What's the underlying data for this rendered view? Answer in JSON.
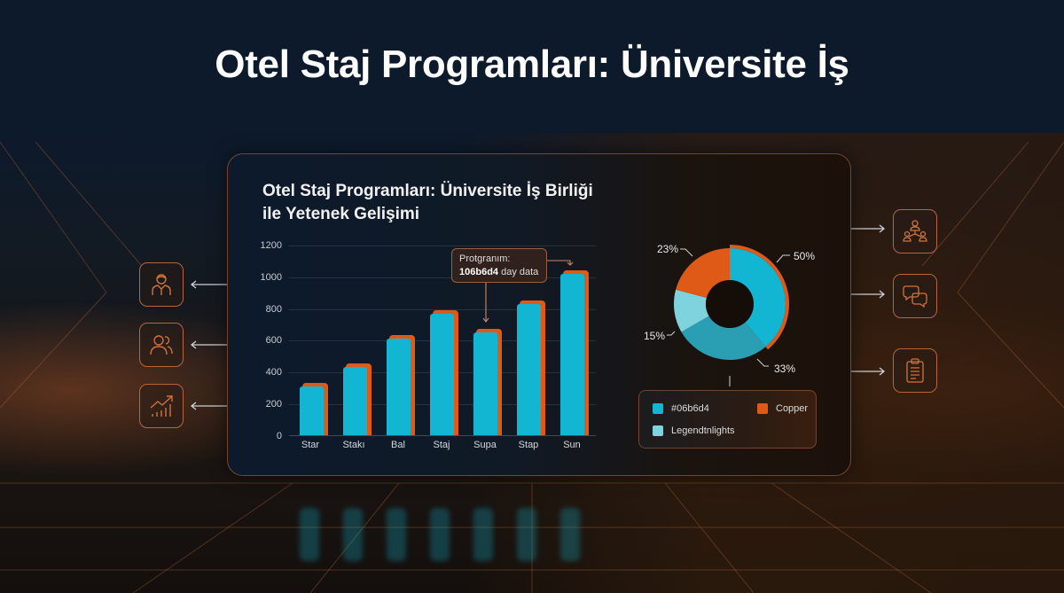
{
  "headline": "Otel Staj Programları: Üniversite İş",
  "panel": {
    "title": "Otel Staj Programları: Üniversite İş Birliği ile Yetenek Gelişimi"
  },
  "tooltip": {
    "line1": "Protgranım:",
    "bold": "106b6d4",
    "rest": " day data"
  },
  "legend": {
    "items": [
      {
        "label": "#06b6d4",
        "color": "#12b5d2"
      },
      {
        "label": "Copper",
        "color": "#e05a17"
      },
      {
        "label": "Legendtnlights",
        "color": "#7fd3df"
      }
    ]
  },
  "pie_labels": {
    "p50": "50%",
    "p23": "23%",
    "p15": "15%",
    "p33": "33%"
  },
  "left_icons": [
    {
      "name": "businessman-icon"
    },
    {
      "name": "users-icon"
    },
    {
      "name": "growth-chart-icon"
    }
  ],
  "right_icons": [
    {
      "name": "network-people-icon"
    },
    {
      "name": "chat-bubbles-icon"
    },
    {
      "name": "clipboard-icon"
    }
  ],
  "colors": {
    "cyan": "#12b5d2",
    "copper": "#e05a17",
    "light_cyan": "#7fd3df",
    "mid_cyan": "#2a9fb4",
    "background": "#0d1a2c"
  },
  "chart_data": [
    {
      "type": "bar",
      "title": "Otel Staj Programları: Üniversite İş Birliği ile Yetenek Gelişimi",
      "categories": [
        "Star",
        "Stakı",
        "Bal",
        "Staj",
        "Supa",
        "Stap",
        "Sun"
      ],
      "values": [
        310,
        430,
        610,
        770,
        650,
        830,
        1020
      ],
      "xlabel": "",
      "ylabel": "",
      "ylim": [
        0,
        1200
      ],
      "yticks": [
        0,
        200,
        400,
        600,
        800,
        1000,
        1200
      ],
      "grid": true,
      "annotation": "Protgranım: 106b6d4 day data"
    },
    {
      "type": "pie",
      "donut": true,
      "slices": [
        {
          "label": "50%",
          "value": 50,
          "color": "#12b5d2"
        },
        {
          "label": "33%",
          "value": 33,
          "color": "#2a9fb4"
        },
        {
          "label": "15%",
          "value": 15,
          "color": "#7fd3df"
        },
        {
          "label": "23%",
          "value": 23,
          "color": "#e05a17"
        }
      ],
      "legend": [
        "#06b6d4",
        "Copper",
        "Legendtnlights"
      ],
      "legend_position": "bottom"
    }
  ]
}
